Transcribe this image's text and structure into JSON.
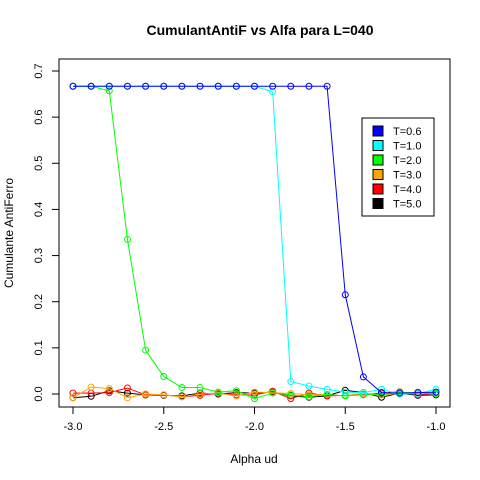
{
  "chart_data": {
    "type": "line",
    "title": "CumulantAntiF vs Alfa para L=040",
    "xlabel": "Alpha ud",
    "ylabel": "Cumulante AntiFerro",
    "xlim": [
      -3.0,
      -1.0
    ],
    "ylim": [
      -0.02,
      0.7
    ],
    "x_ticks": [
      -3.0,
      -2.5,
      -2.0,
      -1.5,
      -1.0
    ],
    "x_tick_labels": [
      "-3.0",
      "-2.5",
      "-2.0",
      "-1.5",
      "-1.0"
    ],
    "y_ticks": [
      0.0,
      0.1,
      0.2,
      0.3,
      0.4,
      0.5,
      0.6,
      0.7
    ],
    "y_tick_labels": [
      "0.0",
      "0.1",
      "0.2",
      "0.3",
      "0.4",
      "0.5",
      "0.6",
      "0.7"
    ],
    "grid": false,
    "legend_position": "right",
    "x": [
      -3.0,
      -2.9,
      -2.8,
      -2.7,
      -2.6,
      -2.5,
      -2.4,
      -2.3,
      -2.2,
      -2.1,
      -2.0,
      -1.9,
      -1.8,
      -1.7,
      -1.6,
      -1.5,
      -1.4,
      -1.3,
      -1.2,
      -1.1,
      -1.0
    ],
    "series": [
      {
        "name": "T=0.6",
        "color": "#0000ff",
        "values": [
          0.667,
          0.667,
          0.667,
          0.667,
          0.667,
          0.667,
          0.667,
          0.667,
          0.667,
          0.667,
          0.667,
          0.667,
          0.667,
          0.667,
          0.667,
          0.215,
          0.037,
          0.003,
          0.002,
          0.003,
          0.004
        ]
      },
      {
        "name": "T=1.0",
        "color": "#00ffff",
        "values": [
          0.667,
          0.667,
          0.667,
          0.667,
          0.667,
          0.667,
          0.667,
          0.667,
          0.667,
          0.667,
          0.667,
          0.655,
          0.027,
          0.017,
          0.01,
          0.004,
          0.003,
          0.01,
          0.0,
          0.001,
          0.01
        ]
      },
      {
        "name": "T=2.0",
        "color": "#00ff00",
        "values": [
          0.667,
          0.667,
          0.657,
          0.335,
          0.095,
          0.038,
          0.014,
          0.014,
          0.004,
          0.007,
          -0.01,
          0.002,
          -0.002,
          -0.006,
          -0.001,
          -0.004,
          -0.002,
          -0.001,
          0.004,
          0.002,
          0.001
        ]
      },
      {
        "name": "T=3.0",
        "color": "#ffa500",
        "values": [
          -0.008,
          0.015,
          0.012,
          -0.008,
          0.0,
          -0.002,
          -0.006,
          0.0,
          0.002,
          -0.004,
          0.004,
          0.003,
          0.001,
          -0.002,
          -0.001,
          -0.004,
          0.002,
          -0.002,
          0.001,
          0.004,
          0.001
        ]
      },
      {
        "name": "T=4.0",
        "color": "#ff0000",
        "values": [
          0.002,
          0.002,
          0.003,
          0.013,
          -0.002,
          -0.002,
          -0.006,
          -0.003,
          0.002,
          -0.002,
          -0.002,
          0.006,
          -0.01,
          0.002,
          -0.004,
          -0.003,
          -0.001,
          0.002,
          0.005,
          -0.002,
          0.002
        ]
      },
      {
        "name": "T=5.0",
        "color": "#000000",
        "values": [
          -0.008,
          -0.005,
          0.007,
          0.002,
          -0.002,
          -0.003,
          -0.004,
          0.002,
          0.0,
          0.003,
          0.002,
          0.004,
          -0.004,
          -0.007,
          -0.004,
          0.008,
          0.003,
          -0.007,
          0.002,
          -0.003,
          -0.002
        ]
      }
    ]
  }
}
